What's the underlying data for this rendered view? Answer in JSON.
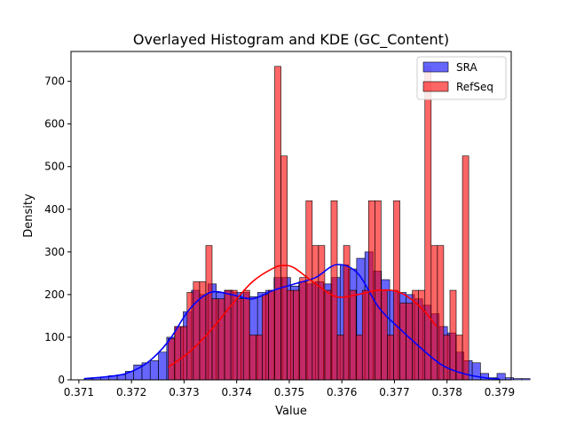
{
  "chart_data": {
    "type": "bar",
    "title": "Overlayed Histogram and KDE (GC_Content)",
    "xlabel": "Value",
    "ylabel": "Density",
    "xlim": [
      0.37085,
      0.37922
    ],
    "ylim": [
      0,
      770
    ],
    "xticks": [
      "0.371",
      "0.372",
      "0.373",
      "0.374",
      "0.375",
      "0.376",
      "0.377",
      "0.378",
      "0.379"
    ],
    "yticks": [
      "0",
      "100",
      "200",
      "300",
      "400",
      "500",
      "600",
      "700"
    ],
    "legend": {
      "position": "top-right"
    },
    "series": [
      {
        "name": "SRA",
        "color": "#0000ff",
        "bin_start": 0.3711,
        "bin_width": 0.000157,
        "values": [
          3,
          5,
          7,
          10,
          12,
          20,
          35,
          40,
          45,
          65,
          100,
          125,
          160,
          210,
          200,
          225,
          205,
          210,
          205,
          205,
          195,
          205,
          210,
          240,
          240,
          220,
          230,
          225,
          230,
          225,
          240,
          270,
          260,
          285,
          300,
          255,
          235,
          210,
          205,
          200,
          190,
          175,
          155,
          125,
          110,
          65,
          45,
          40,
          15,
          5,
          15,
          5,
          3,
          3
        ],
        "kde_x": [
          0.3711,
          0.3715,
          0.3719,
          0.3723,
          0.3727,
          0.3731,
          0.3735,
          0.3739,
          0.3743,
          0.3747,
          0.3751,
          0.3755,
          0.3759,
          0.3763,
          0.3767,
          0.3771,
          0.3775,
          0.3779,
          0.3783,
          0.3787,
          0.379
        ],
        "kde_y": [
          3,
          7,
          15,
          40,
          90,
          165,
          205,
          200,
          190,
          210,
          225,
          240,
          270,
          250,
          170,
          120,
          75,
          35,
          15,
          5,
          2
        ]
      },
      {
        "name": "RefSeq",
        "color": "#ff0000",
        "bin_start": 0.3727,
        "bin_width": 0.000119,
        "values": [
          97,
          125,
          125,
          205,
          230,
          230,
          315,
          190,
          190,
          210,
          210,
          190,
          210,
          105,
          105,
          200,
          210,
          735,
          525,
          210,
          210,
          240,
          420,
          315,
          315,
          210,
          420,
          105,
          315,
          210,
          105,
          210,
          420,
          420,
          210,
          105,
          420,
          180,
          180,
          210,
          210,
          735,
          315,
          315,
          105,
          210,
          105,
          525
        ],
        "kde_x": [
          0.3727,
          0.3731,
          0.3735,
          0.3739,
          0.3743,
          0.3747,
          0.3749,
          0.3751,
          0.3755,
          0.3759,
          0.3763,
          0.3767,
          0.3771,
          0.3775,
          0.3778
        ],
        "kde_y": [
          30,
          65,
          115,
          175,
          230,
          262,
          268,
          262,
          225,
          195,
          200,
          210,
          205,
          170,
          125
        ]
      }
    ]
  }
}
